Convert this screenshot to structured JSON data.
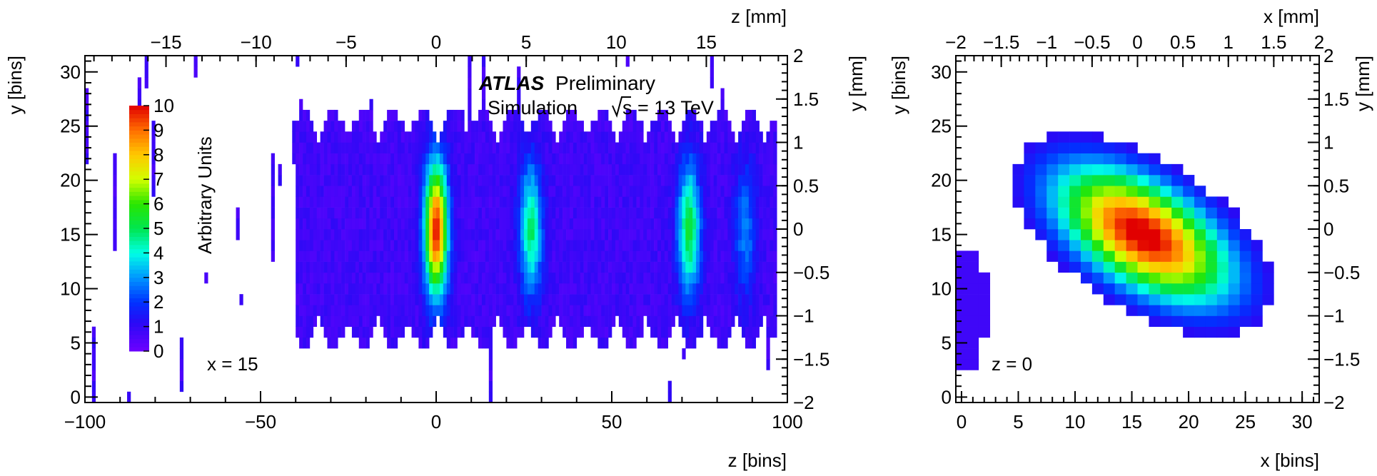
{
  "chart_data": [
    {
      "type": "heatmap",
      "title": "",
      "annotation": {
        "experiment": "ATLAS",
        "status": "Preliminary",
        "line2_prefix": "Simulation",
        "line2_energy": "s = 13 TeV",
        "slice_label": "x = 15"
      },
      "xlabel": "z [bins]",
      "ylabel": "y [bins]",
      "x2label": "z [mm]",
      "y2label": "y [mm]",
      "xlim": [
        -100,
        100
      ],
      "ylim": [
        -0.5,
        31.5
      ],
      "x2lim": [
        -19.5,
        19.5
      ],
      "y2lim": [
        -2,
        2
      ],
      "xticks": [
        "−100",
        "−50",
        "0",
        "50",
        "100"
      ],
      "yticks": [
        "0",
        "5",
        "10",
        "15",
        "20",
        "25",
        "30"
      ],
      "x2ticks": [
        "−15",
        "−10",
        "−5",
        "0",
        "5",
        "10",
        "15"
      ],
      "y2ticks": [
        "−2",
        "−1.5",
        "−1",
        "−0.5",
        "0",
        "0.5",
        "1",
        "1.5",
        "2"
      ],
      "colorbar": {
        "label": "Arbitrary Units",
        "range": [
          0,
          10
        ],
        "ticks": [
          "0",
          "1",
          "2",
          "3",
          "4",
          "5",
          "6",
          "7",
          "8",
          "9",
          "10"
        ]
      },
      "features": [
        {
          "z": 0,
          "y": 15.5,
          "peak": 9
        },
        {
          "z": 27,
          "y": 15.5,
          "peak": 4
        },
        {
          "z": 72,
          "y": 15.5,
          "peak": 4.5
        },
        {
          "z": 88,
          "y": 15.5,
          "peak": 2
        }
      ]
    },
    {
      "type": "heatmap",
      "title": "",
      "annotation": {
        "slice_label": "z = 0"
      },
      "xlabel": "x [bins]",
      "ylabel": "y [bins]",
      "x2label": "x [mm]",
      "y2label": "y [mm]",
      "xlim": [
        -0.5,
        31.5
      ],
      "ylim": [
        -0.5,
        31.5
      ],
      "x2lim": [
        -2,
        2
      ],
      "y2lim": [
        -2,
        2
      ],
      "xticks": [
        "0",
        "5",
        "10",
        "15",
        "20",
        "25",
        "30"
      ],
      "yticks": [
        "0",
        "5",
        "10",
        "15",
        "20",
        "25",
        "30"
      ],
      "x2ticks": [
        "−2",
        "−1.5",
        "−1",
        "−0.5",
        "0",
        "0.5",
        "1",
        "1.5",
        "2"
      ],
      "y2ticks": [
        "−2",
        "−1.5",
        "−1",
        "−0.5",
        "0",
        "0.5",
        "1",
        "1.5",
        "2"
      ],
      "peak": {
        "x": 16,
        "y": 15,
        "value": 10
      }
    }
  ]
}
